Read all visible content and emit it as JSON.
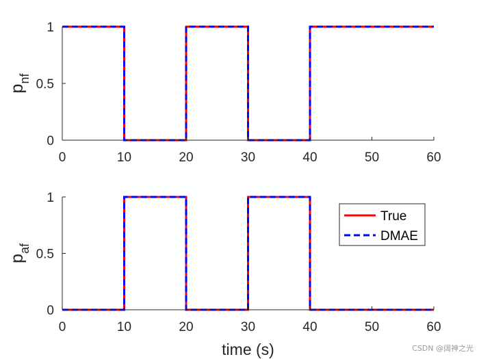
{
  "chart_data": [
    {
      "type": "line",
      "ylabel_main": "p",
      "ylabel_sub": "nf",
      "xlim": [
        0,
        60
      ],
      "ylim": [
        0,
        1
      ],
      "xticks": [
        0,
        10,
        20,
        30,
        40,
        50,
        60
      ],
      "yticks": [
        0,
        0.5,
        1
      ],
      "grid": false,
      "series": [
        {
          "name": "True",
          "color": "#ff0000",
          "style": "solid",
          "x": [
            0,
            10,
            10,
            20,
            20,
            30,
            30,
            40,
            40,
            60
          ],
          "y": [
            1,
            1,
            0,
            0,
            1,
            1,
            0,
            0,
            1,
            1
          ]
        },
        {
          "name": "DMAE",
          "color": "#0000ff",
          "style": "dashed",
          "x": [
            0,
            10,
            10,
            20,
            20,
            30,
            30,
            40,
            40,
            60
          ],
          "y": [
            1,
            1,
            0,
            0,
            1,
            1,
            0,
            0,
            1,
            1
          ]
        }
      ]
    },
    {
      "type": "line",
      "ylabel_main": "p",
      "ylabel_sub": "af",
      "xlabel": "time (s)",
      "xlim": [
        0,
        60
      ],
      "ylim": [
        0,
        1
      ],
      "xticks": [
        0,
        10,
        20,
        30,
        40,
        50,
        60
      ],
      "yticks": [
        0,
        0.5,
        1
      ],
      "grid": false,
      "legend": "upper-right",
      "series": [
        {
          "name": "True",
          "color": "#ff0000",
          "style": "solid",
          "x": [
            0,
            10,
            10,
            20,
            20,
            30,
            30,
            40,
            40,
            60
          ],
          "y": [
            0,
            0,
            1,
            1,
            0,
            0,
            1,
            1,
            0,
            0
          ]
        },
        {
          "name": "DMAE",
          "color": "#0000ff",
          "style": "dashed",
          "x": [
            0,
            10,
            10,
            20,
            20,
            30,
            30,
            40,
            40,
            60
          ],
          "y": [
            0,
            0,
            1,
            1,
            0,
            0,
            1,
            1,
            0,
            0
          ]
        }
      ]
    }
  ],
  "watermark": "CSDN @阔神之光"
}
